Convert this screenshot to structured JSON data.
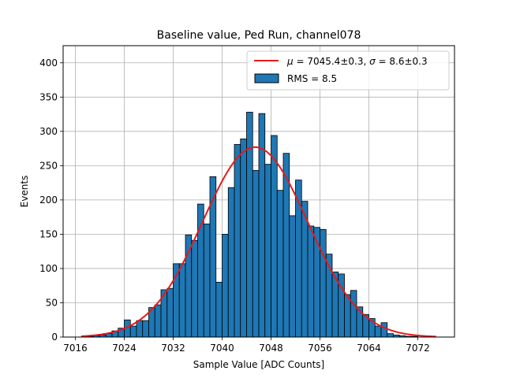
{
  "chart_data": {
    "type": "bar",
    "title": "Baseline value, Ped Run, channel078",
    "xlabel": "Sample Value [ADC Counts]",
    "ylabel": "Events",
    "xlim": [
      7014,
      7078
    ],
    "ylim": [
      0,
      425
    ],
    "xticks": [
      7016,
      7024,
      7032,
      7040,
      7048,
      7056,
      7064,
      7072
    ],
    "yticks": [
      0,
      50,
      100,
      150,
      200,
      250,
      300,
      350,
      400
    ],
    "grid": true,
    "legend_position": "top-right",
    "bin_width": 1,
    "histogram": {
      "name": "RMS = 8.5",
      "color": "#1f77b4",
      "edgecolor": "#000000",
      "bins": [
        7016,
        7017,
        7018,
        7019,
        7020,
        7021,
        7022,
        7023,
        7024,
        7025,
        7026,
        7027,
        7028,
        7029,
        7030,
        7031,
        7032,
        7033,
        7034,
        7035,
        7036,
        7037,
        7038,
        7039,
        7040,
        7041,
        7042,
        7043,
        7044,
        7045,
        7046,
        7047,
        7048,
        7049,
        7050,
        7051,
        7052,
        7053,
        7054,
        7055,
        7056,
        7057,
        7058,
        7059,
        7060,
        7061,
        7062,
        7063,
        7064,
        7065,
        7066,
        7067,
        7068,
        7069,
        7070,
        7071,
        7072,
        7073
      ],
      "values": [
        0,
        1,
        1,
        2,
        3,
        5,
        9,
        13,
        25,
        16,
        24,
        24,
        43,
        47,
        69,
        71,
        107,
        107,
        149,
        141,
        194,
        165,
        234,
        80,
        150,
        218,
        281,
        289,
        328,
        243,
        326,
        252,
        294,
        214,
        268,
        177,
        229,
        198,
        162,
        160,
        157,
        121,
        95,
        92,
        62,
        68,
        44,
        33,
        27,
        16,
        21,
        5,
        3,
        2,
        1,
        1,
        0,
        0
      ]
    },
    "fit": {
      "label": "μ = 7045.4±0.3, σ = 8.6±0.3",
      "mu": 7045.4,
      "sigma": 8.6,
      "amplitude": 277,
      "x_range": [
        7017,
        7075
      ],
      "color": "#e41a1c"
    },
    "legend": {
      "fit_mu_symbol": "μ",
      "fit_mu_text": " = 7045.4±0.3, ",
      "fit_sigma_symbol": "σ",
      "fit_sigma_text": " = 8.6±0.3",
      "hist_label": "RMS = 8.5"
    }
  }
}
